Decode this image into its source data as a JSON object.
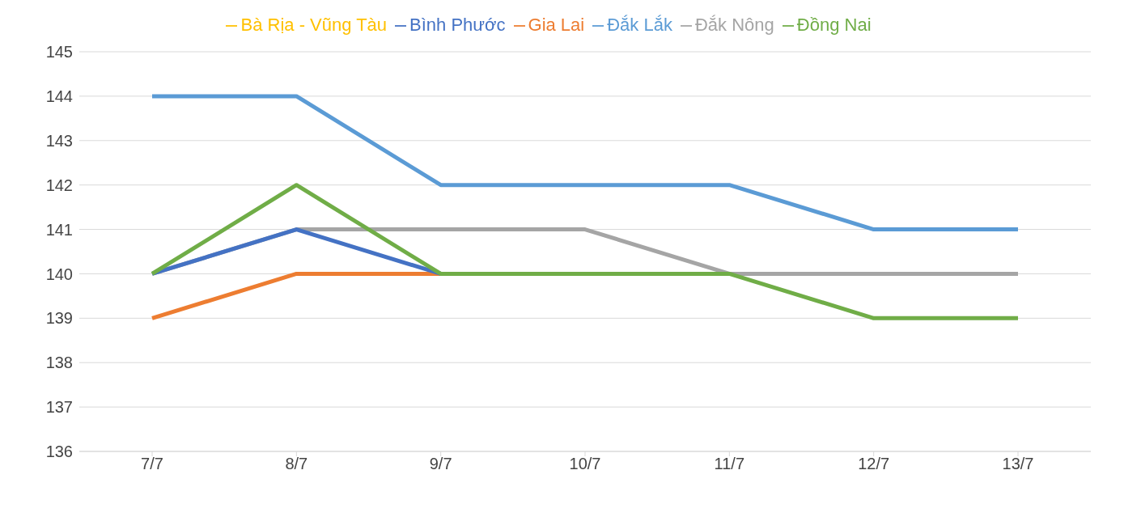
{
  "chart_data": {
    "type": "line",
    "categories": [
      "7/7",
      "8/7",
      "9/7",
      "10/7",
      "11/7",
      "12/7",
      "13/7"
    ],
    "series": [
      {
        "name": "Đắk Lắk",
        "color": "#5b9bd5",
        "values": [
          144,
          144,
          142,
          142,
          142,
          141,
          141
        ]
      },
      {
        "name": "Gia Lai",
        "color": "#ed7d31",
        "values": [
          139,
          140,
          140,
          null,
          null,
          null,
          null
        ]
      },
      {
        "name": "Đắk Nông",
        "color": "#a5a5a5",
        "values": [
          140,
          141,
          141,
          141,
          140,
          140,
          140
        ]
      },
      {
        "name": "Bà Rịa - Vũng Tàu",
        "color": "#ffc000",
        "values": [
          null,
          null,
          null,
          null,
          null,
          null,
          null
        ]
      },
      {
        "name": "Bình Phước",
        "color": "#4472c4",
        "values": [
          140,
          141,
          140,
          null,
          null,
          null,
          null
        ]
      },
      {
        "name": "Đồng Nai",
        "color": "#70ad47",
        "values": [
          140,
          142,
          140,
          140,
          140,
          139,
          139
        ]
      }
    ],
    "ylim": [
      136,
      145
    ],
    "yticks": [
      136,
      137,
      138,
      139,
      140,
      141,
      142,
      143,
      144,
      145
    ],
    "grid": "y",
    "legend": "top",
    "marker": "none",
    "line_style": "solid"
  }
}
